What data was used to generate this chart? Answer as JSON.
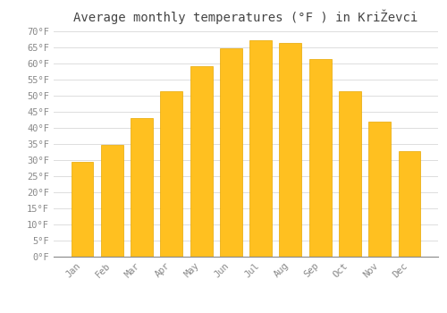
{
  "title": "Average monthly temperatures (°F ) in KriŽevci",
  "months": [
    "Jan",
    "Feb",
    "Mar",
    "Apr",
    "May",
    "Jun",
    "Jul",
    "Aug",
    "Sep",
    "Oct",
    "Nov",
    "Dec"
  ],
  "values": [
    29.5,
    34.7,
    43.0,
    51.5,
    59.2,
    64.8,
    67.3,
    66.5,
    61.3,
    51.5,
    42.0,
    32.9
  ],
  "bar_color": "#FFC020",
  "bar_edge_color": "#E8A800",
  "background_color": "#FFFFFF",
  "grid_color": "#DDDDDD",
  "ylim": [
    0,
    70
  ],
  "yticks": [
    0,
    5,
    10,
    15,
    20,
    25,
    30,
    35,
    40,
    45,
    50,
    55,
    60,
    65,
    70
  ],
  "ytick_labels": [
    "0°F",
    "5°F",
    "10°F",
    "15°F",
    "20°F",
    "25°F",
    "30°F",
    "35°F",
    "40°F",
    "45°F",
    "50°F",
    "55°F",
    "60°F",
    "65°F",
    "70°F"
  ],
  "title_fontsize": 10,
  "tick_fontsize": 7.5,
  "font_family": "monospace",
  "text_color": "#888888"
}
